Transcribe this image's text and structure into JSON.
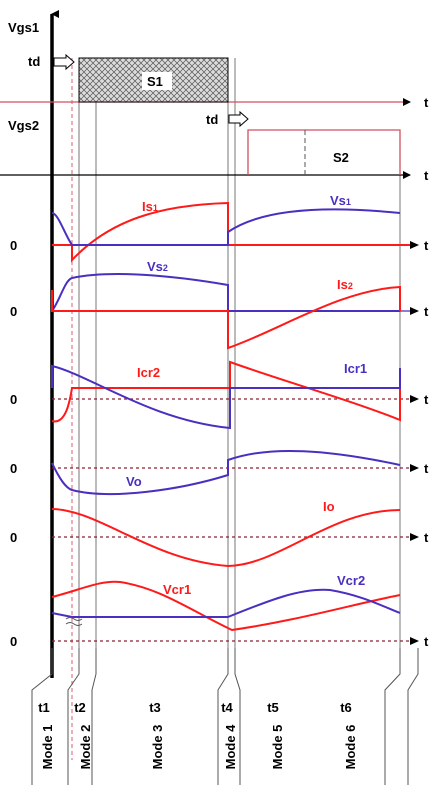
{
  "colors": {
    "axis": "#000000",
    "red": "#ff1a1a",
    "blue": "#4a2fc0",
    "pink_dash": "#e07a8a",
    "guide": "#555555",
    "hatch_fill": "#c8c8c8"
  },
  "gate": {
    "vgs1": "Vgs1",
    "vgs2": "Vgs2",
    "td1": "td",
    "td2": "td",
    "s1": "S1",
    "s2": "S2"
  },
  "axis_t": "t",
  "zero": "0",
  "labels": {
    "is1": "Is",
    "is1_sub": "1",
    "vs1": "Vs",
    "vs1_sub": "1",
    "vs2": "Vs",
    "vs2_sub": "2",
    "is2": "Is",
    "is2_sub": "2",
    "icr2": "Icr2",
    "icr1": "Icr1",
    "vo": "Vo",
    "io": "Io",
    "vcr1": "Vcr1",
    "vcr2": "Vcr2"
  },
  "intervals": [
    "t1",
    "t2",
    "t3",
    "t4",
    "t5",
    "t6"
  ],
  "modes": [
    "Mode 1",
    "Mode 2",
    "Mode 3",
    "Mode 4",
    "Mode 5",
    "Mode 6"
  ]
}
